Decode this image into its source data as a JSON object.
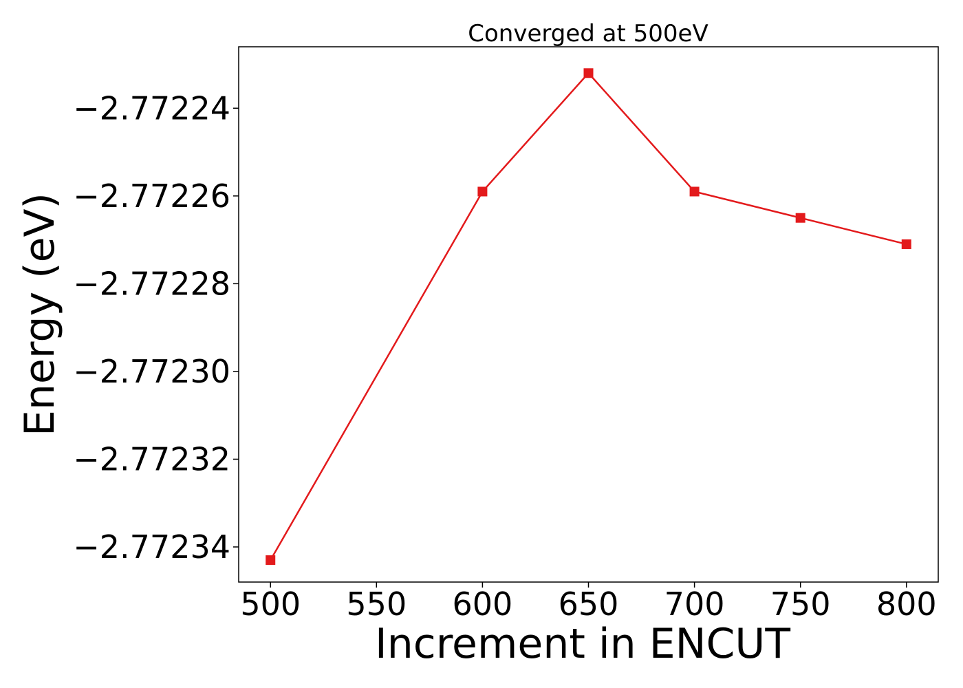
{
  "chart_data": {
    "type": "line",
    "title": "Converged at 500eV",
    "xlabel": "Increment in ENCUT",
    "ylabel": "Energy (eV)",
    "x": [
      500,
      600,
      650,
      700,
      750,
      800
    ],
    "series": [
      {
        "values": [
          -2.772343,
          -2.772259,
          -2.772232,
          -2.772259,
          -2.772265,
          -2.772271
        ],
        "color": "#e31a1c",
        "marker": "square"
      }
    ],
    "xlim": [
      485,
      815
    ],
    "ylim": [
      -2.772348,
      -2.772226
    ],
    "xticks": [
      500,
      550,
      600,
      650,
      700,
      750,
      800
    ],
    "xtick_labels": [
      "500",
      "550",
      "600",
      "650",
      "700",
      "750",
      "800"
    ],
    "yticks": [
      -2.77224,
      -2.77226,
      -2.77228,
      -2.7723,
      -2.77232,
      -2.77234
    ],
    "ytick_labels": [
      "−2.77224",
      "−2.77226",
      "−2.77228",
      "−2.77230",
      "−2.77232",
      "−2.77234"
    ],
    "grid": false,
    "legend": "none"
  }
}
